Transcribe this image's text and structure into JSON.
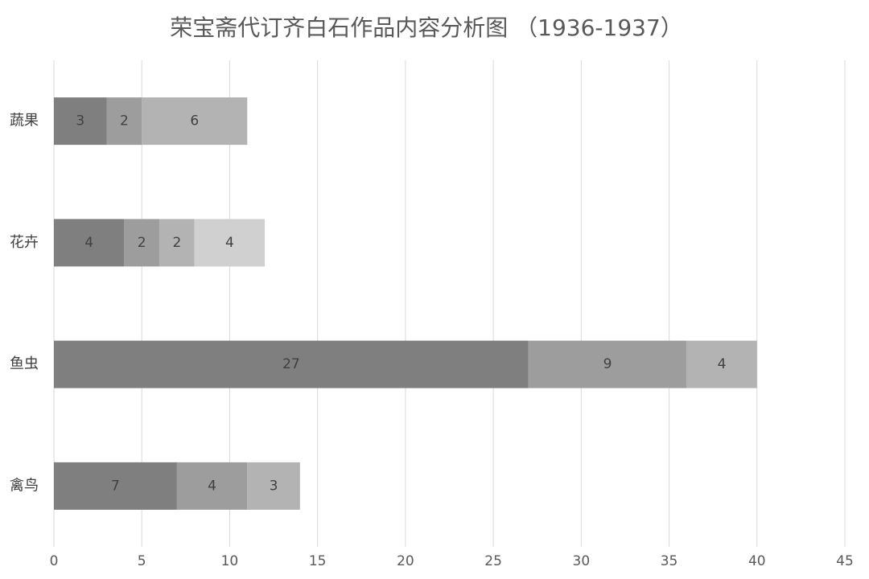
{
  "chart_data": {
    "type": "bar",
    "horizontal": true,
    "stacked": true,
    "title": "荣宝斋代订齐白石作品内容分析图 （1936-1937）",
    "categories": [
      "蔬果",
      "花卉",
      "鱼虫",
      "禽鸟"
    ],
    "series": [
      {
        "color": "#7f7f7f",
        "values": [
          3,
          4,
          27,
          7
        ]
      },
      {
        "color": "#9d9d9d",
        "values": [
          2,
          2,
          9,
          4
        ]
      },
      {
        "color": "#b3b3b3",
        "values": [
          6,
          2,
          4,
          3
        ]
      },
      {
        "color": "#d0d0d0",
        "values": [
          null,
          4,
          null,
          null
        ]
      }
    ],
    "xlim": [
      0,
      45
    ],
    "xticks": [
      0,
      5,
      10,
      15,
      20,
      25,
      30,
      35,
      40,
      45
    ],
    "grid": true
  }
}
